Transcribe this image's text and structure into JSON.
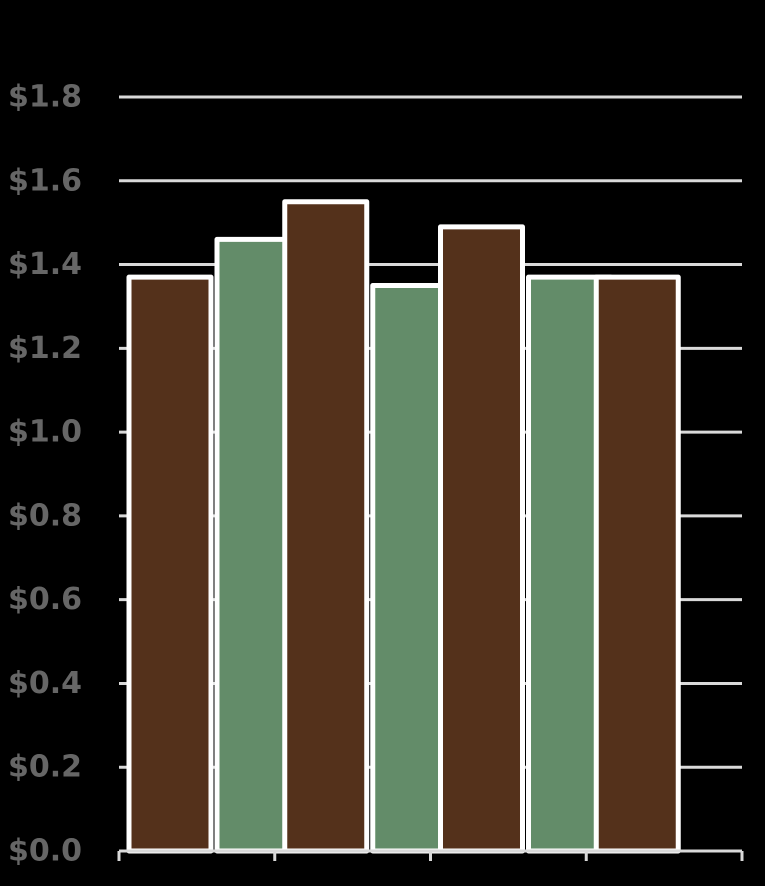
{
  "chart_data": {
    "type": "bar",
    "title": "",
    "xlabel": "",
    "ylabel": "",
    "categories": [
      "",
      "",
      "",
      ""
    ],
    "series": [
      {
        "values": [
          1.37,
          1.55,
          1.49,
          1.37
        ]
      },
      {
        "values": [
          1.46,
          1.35,
          1.37,
          null
        ]
      }
    ],
    "ylim": [
      0,
      1.8
    ],
    "yticks": [
      {
        "value": 0.0,
        "label": "$0.0"
      },
      {
        "value": 0.2,
        "label": "$0.2"
      },
      {
        "value": 0.4,
        "label": "$0.4"
      },
      {
        "value": 0.6,
        "label": "$0.6"
      },
      {
        "value": 0.8,
        "label": "$0.8"
      },
      {
        "value": 1.0,
        "label": "$1.0"
      },
      {
        "value": 1.2,
        "label": "$1.2"
      },
      {
        "value": 1.4,
        "label": "$1.4"
      },
      {
        "value": 1.6,
        "label": "$1.6"
      },
      {
        "value": 1.8,
        "label": "$1.8"
      }
    ],
    "grid": true,
    "legend": "none",
    "colors": {
      "background": "#000000",
      "series": [
        "#54311B",
        "#638C69"
      ],
      "bar_outline": "#FFFFFF",
      "gridline": "#D9D9D9",
      "tick_text": "#666666"
    }
  }
}
